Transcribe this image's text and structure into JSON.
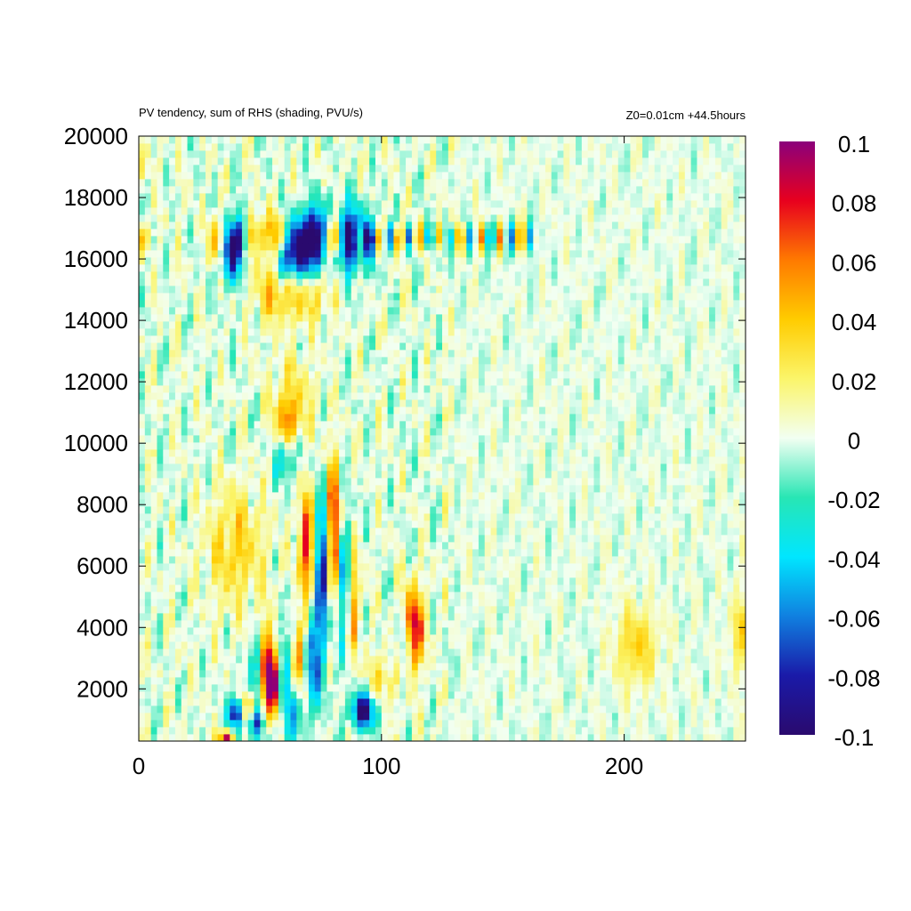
{
  "chart_data": {
    "type": "heatmap",
    "title": "PV tendency, sum of RHS (shading, PVU/s)",
    "subtitle": "Z0=0.01cm   +44.5hours",
    "xlabel": "",
    "ylabel": "",
    "xlim": [
      0,
      250
    ],
    "ylim": [
      300,
      20000
    ],
    "x_ticks": [
      {
        "value": 0,
        "label": "0"
      },
      {
        "value": 100,
        "label": "100"
      },
      {
        "value": 200,
        "label": "200"
      }
    ],
    "y_ticks": [
      {
        "value": 2000,
        "label": "2000"
      },
      {
        "value": 4000,
        "label": "4000"
      },
      {
        "value": 6000,
        "label": "6000"
      },
      {
        "value": 8000,
        "label": "8000"
      },
      {
        "value": 10000,
        "label": "10000"
      },
      {
        "value": 12000,
        "label": "12000"
      },
      {
        "value": 14000,
        "label": "14000"
      },
      {
        "value": 16000,
        "label": "16000"
      },
      {
        "value": 18000,
        "label": "18000"
      },
      {
        "value": 20000,
        "label": "20000"
      }
    ],
    "colorbar": {
      "range": [
        -0.1,
        0.1
      ],
      "ticks": [
        {
          "value": 0.1,
          "label": "0.1"
        },
        {
          "value": 0.08,
          "label": "0.08"
        },
        {
          "value": 0.06,
          "label": "0.06"
        },
        {
          "value": 0.04,
          "label": "0.04"
        },
        {
          "value": 0.02,
          "label": "0.02"
        },
        {
          "value": 0,
          "label": "0"
        },
        {
          "value": -0.02,
          "label": "-0.02"
        },
        {
          "value": -0.04,
          "label": "-0.04"
        },
        {
          "value": -0.06,
          "label": "-0.06"
        },
        {
          "value": -0.08,
          "label": "-0.08"
        },
        {
          "value": -0.1,
          "label": "-0.1"
        }
      ],
      "colors": [
        "#2a0a6e",
        "#1a1aa8",
        "#1080e0",
        "#00e6ff",
        "#28e6b4",
        "#f2fff2",
        "#fbf56a",
        "#ffcc00",
        "#ff7a00",
        "#e8001e",
        "#8b007b"
      ]
    },
    "grid": false,
    "legend": "colorbar-right",
    "features": [
      {
        "x": 88,
        "y": 16700,
        "amp": -0.09,
        "sx": 6,
        "sy": 700
      },
      {
        "x": 66,
        "y": 16400,
        "amp": -0.1,
        "sx": 4,
        "sy": 700
      },
      {
        "x": 73,
        "y": 16700,
        "amp": -0.1,
        "sx": 3,
        "sy": 700
      },
      {
        "x": 79,
        "y": 16700,
        "amp": 0.07,
        "sx": 2,
        "sy": 500
      },
      {
        "x": 38,
        "y": 16300,
        "amp": -0.09,
        "sx": 3,
        "sy": 700
      },
      {
        "x": 32,
        "y": 16600,
        "amp": 0.06,
        "sx": 2,
        "sy": 500
      },
      {
        "x": 57,
        "y": 16800,
        "amp": 0.05,
        "sx": 3,
        "sy": 500
      },
      {
        "x": 48,
        "y": 16800,
        "amp": 0.04,
        "sx": 3,
        "sy": 500
      },
      {
        "x": 42,
        "y": 16700,
        "amp": -0.05,
        "sx": 2,
        "sy": 500
      },
      {
        "x": 60,
        "y": 15900,
        "amp": -0.05,
        "sx": 3,
        "sy": 500
      },
      {
        "x": 56,
        "y": 15000,
        "amp": 0.04,
        "sx": 6,
        "sy": 700
      },
      {
        "x": 70,
        "y": 14800,
        "amp": 0.03,
        "sx": 6,
        "sy": 600
      },
      {
        "x": 63,
        "y": 11500,
        "amp": 0.03,
        "sx": 6,
        "sy": 900
      },
      {
        "x": 61,
        "y": 10600,
        "amp": 0.05,
        "sx": 3,
        "sy": 500
      },
      {
        "x": 60,
        "y": 9600,
        "amp": -0.04,
        "sx": 3,
        "sy": 600
      },
      {
        "x": 40,
        "y": 6600,
        "amp": 0.035,
        "sx": 8,
        "sy": 1300
      },
      {
        "x": 69,
        "y": 6600,
        "amp": 0.08,
        "sx": 2,
        "sy": 1200
      },
      {
        "x": 76,
        "y": 6000,
        "amp": -0.09,
        "sx": 2,
        "sy": 1500
      },
      {
        "x": 80,
        "y": 7200,
        "amp": 0.09,
        "sx": 2,
        "sy": 1500
      },
      {
        "x": 85,
        "y": 5400,
        "amp": -0.06,
        "sx": 2,
        "sy": 1500
      },
      {
        "x": 88,
        "y": 4800,
        "amp": 0.06,
        "sx": 2,
        "sy": 1200
      },
      {
        "x": 113,
        "y": 4000,
        "amp": 0.09,
        "sx": 3,
        "sy": 900
      },
      {
        "x": 109,
        "y": 3600,
        "amp": -0.04,
        "sx": 2,
        "sy": 700
      },
      {
        "x": 52,
        "y": 2800,
        "amp": 0.08,
        "sx": 3,
        "sy": 900
      },
      {
        "x": 49,
        "y": 2700,
        "amp": -0.08,
        "sx": 2,
        "sy": 800
      },
      {
        "x": 55,
        "y": 2200,
        "amp": 0.1,
        "sx": 2,
        "sy": 700
      },
      {
        "x": 60,
        "y": 2800,
        "amp": -0.05,
        "sx": 2,
        "sy": 1000
      },
      {
        "x": 66,
        "y": 3200,
        "amp": 0.06,
        "sx": 2,
        "sy": 800
      },
      {
        "x": 72,
        "y": 3000,
        "amp": -0.06,
        "sx": 3,
        "sy": 1200
      },
      {
        "x": 40,
        "y": 1200,
        "amp": -0.1,
        "sx": 2,
        "sy": 400
      },
      {
        "x": 45,
        "y": 1400,
        "amp": 0.06,
        "sx": 2,
        "sy": 400
      },
      {
        "x": 48,
        "y": 900,
        "amp": -0.08,
        "sx": 2,
        "sy": 400
      },
      {
        "x": 93,
        "y": 1300,
        "amp": -0.1,
        "sx": 4,
        "sy": 400
      },
      {
        "x": 36,
        "y": 400,
        "amp": 0.1,
        "sx": 2,
        "sy": 200
      },
      {
        "x": 63,
        "y": 1000,
        "amp": -0.04,
        "sx": 3,
        "sy": 600
      },
      {
        "x": 100,
        "y": 2200,
        "amp": 0.03,
        "sx": 4,
        "sy": 700
      },
      {
        "x": 205,
        "y": 3400,
        "amp": 0.035,
        "sx": 6,
        "sy": 900
      },
      {
        "x": 248,
        "y": 3800,
        "amp": 0.03,
        "sx": 3,
        "sy": 900
      },
      {
        "x": 2,
        "y": 16700,
        "amp": 0.04,
        "sx": 2,
        "sy": 400
      },
      {
        "x": 2,
        "y": 19300,
        "amp": 0.02,
        "sx": 2,
        "sy": 500
      }
    ],
    "tropopause_band": {
      "y": 16700,
      "x_from": 80,
      "x_to": 165,
      "amp": 0.06
    }
  }
}
